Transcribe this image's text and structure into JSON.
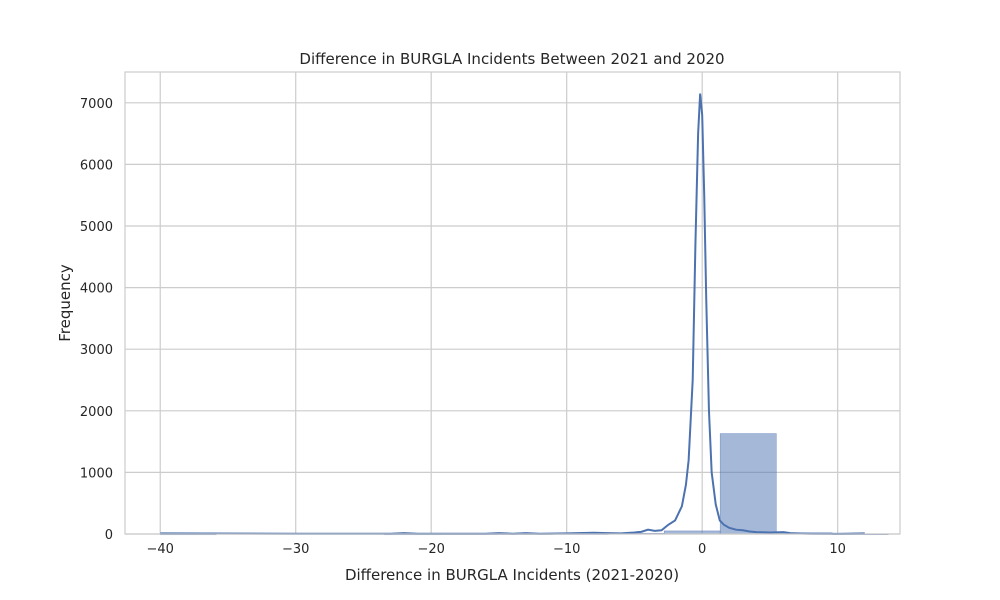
{
  "chart_data": {
    "type": "bar",
    "title": "Difference in BURGLA Incidents Between 2021 and 2020",
    "xlabel": "Difference in BURGLA Incidents (2021-2020)",
    "ylabel": "Frequency",
    "xlim": [
      -42.6,
      14.6
    ],
    "ylim": [
      0,
      7500
    ],
    "xticks": [
      -40,
      -30,
      -20,
      -10,
      0,
      10
    ],
    "xtick_labels": [
      "−40",
      "−30",
      "−20",
      "−10",
      "0",
      "10"
    ],
    "yticks": [
      0,
      1000,
      2000,
      3000,
      4000,
      5000,
      6000,
      7000
    ],
    "ytick_labels": [
      "0",
      "1000",
      "2000",
      "3000",
      "4000",
      "5000",
      "6000",
      "7000"
    ],
    "grid": true,
    "colors": {
      "bar_fill": "#4c72b0",
      "bar_fill_opacity": 0.5,
      "kde_line": "#4c72b0",
      "grid": "#cccccc",
      "axes_edge": "#cccccc"
    },
    "histogram": {
      "bin_edges": [
        -40.0,
        -35.87,
        -31.73,
        -27.6,
        -23.47,
        -19.33,
        -15.2,
        -11.07,
        -6.93,
        -2.8,
        1.33,
        5.47,
        9.6,
        13.73
      ],
      "counts": [
        1,
        0,
        0,
        0,
        1,
        2,
        3,
        5,
        12,
        50,
        1630,
        20,
        2
      ]
    },
    "kde": {
      "x": [
        -40,
        -30,
        -23,
        -22,
        -21,
        -16,
        -15,
        -14,
        -13,
        -12,
        -10,
        -8,
        -7,
        -6,
        -5,
        -4.5,
        -4,
        -3.5,
        -3,
        -2.5,
        -2,
        -1.5,
        -1.2,
        -1,
        -0.7,
        -0.5,
        -0.3,
        -0.15,
        0,
        0.15,
        0.3,
        0.5,
        0.7,
        1,
        1.3,
        1.6,
        2,
        2.5,
        3,
        3.5,
        4,
        5,
        6,
        6.5,
        7,
        8,
        10,
        12
      ],
      "y": [
        10,
        5,
        5,
        15,
        5,
        5,
        15,
        5,
        15,
        5,
        10,
        20,
        15,
        10,
        25,
        35,
        70,
        50,
        60,
        150,
        220,
        450,
        800,
        1200,
        2500,
        4700,
        6500,
        7150,
        6800,
        5500,
        3800,
        2000,
        1000,
        480,
        220,
        150,
        100,
        70,
        60,
        40,
        30,
        25,
        30,
        15,
        10,
        5,
        3,
        10
      ]
    }
  }
}
